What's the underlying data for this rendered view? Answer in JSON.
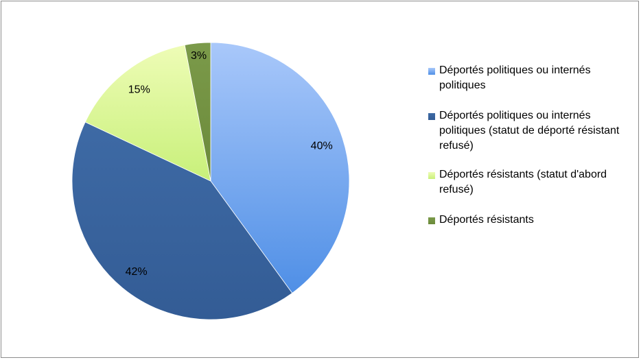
{
  "chart_data": {
    "type": "pie",
    "title": "",
    "start_angle_deg": 0,
    "direction": "clockwise",
    "slices": [
      {
        "label": "Déportés politiques ou internés politiques",
        "value": 40,
        "display": "40%",
        "color_light": "#a9c8fa",
        "color_dark": "#4f8fe6"
      },
      {
        "label": "Déportés politiques ou internés politiques (statut de déporté résistant refusé)",
        "value": 42,
        "display": "42%",
        "color_light": "#3e6aa5",
        "color_dark": "#335c95"
      },
      {
        "label": "Déportés résistants (statut d'abord refusé)",
        "value": 15,
        "display": "15%",
        "color_light": "#eefcb6",
        "color_dark": "#c8f07a"
      },
      {
        "label": "Déportés résistants",
        "value": 3,
        "display": "3%",
        "color_light": "#7b9a4a",
        "color_dark": "#6b8a3a"
      }
    ],
    "legend_position": "right"
  }
}
